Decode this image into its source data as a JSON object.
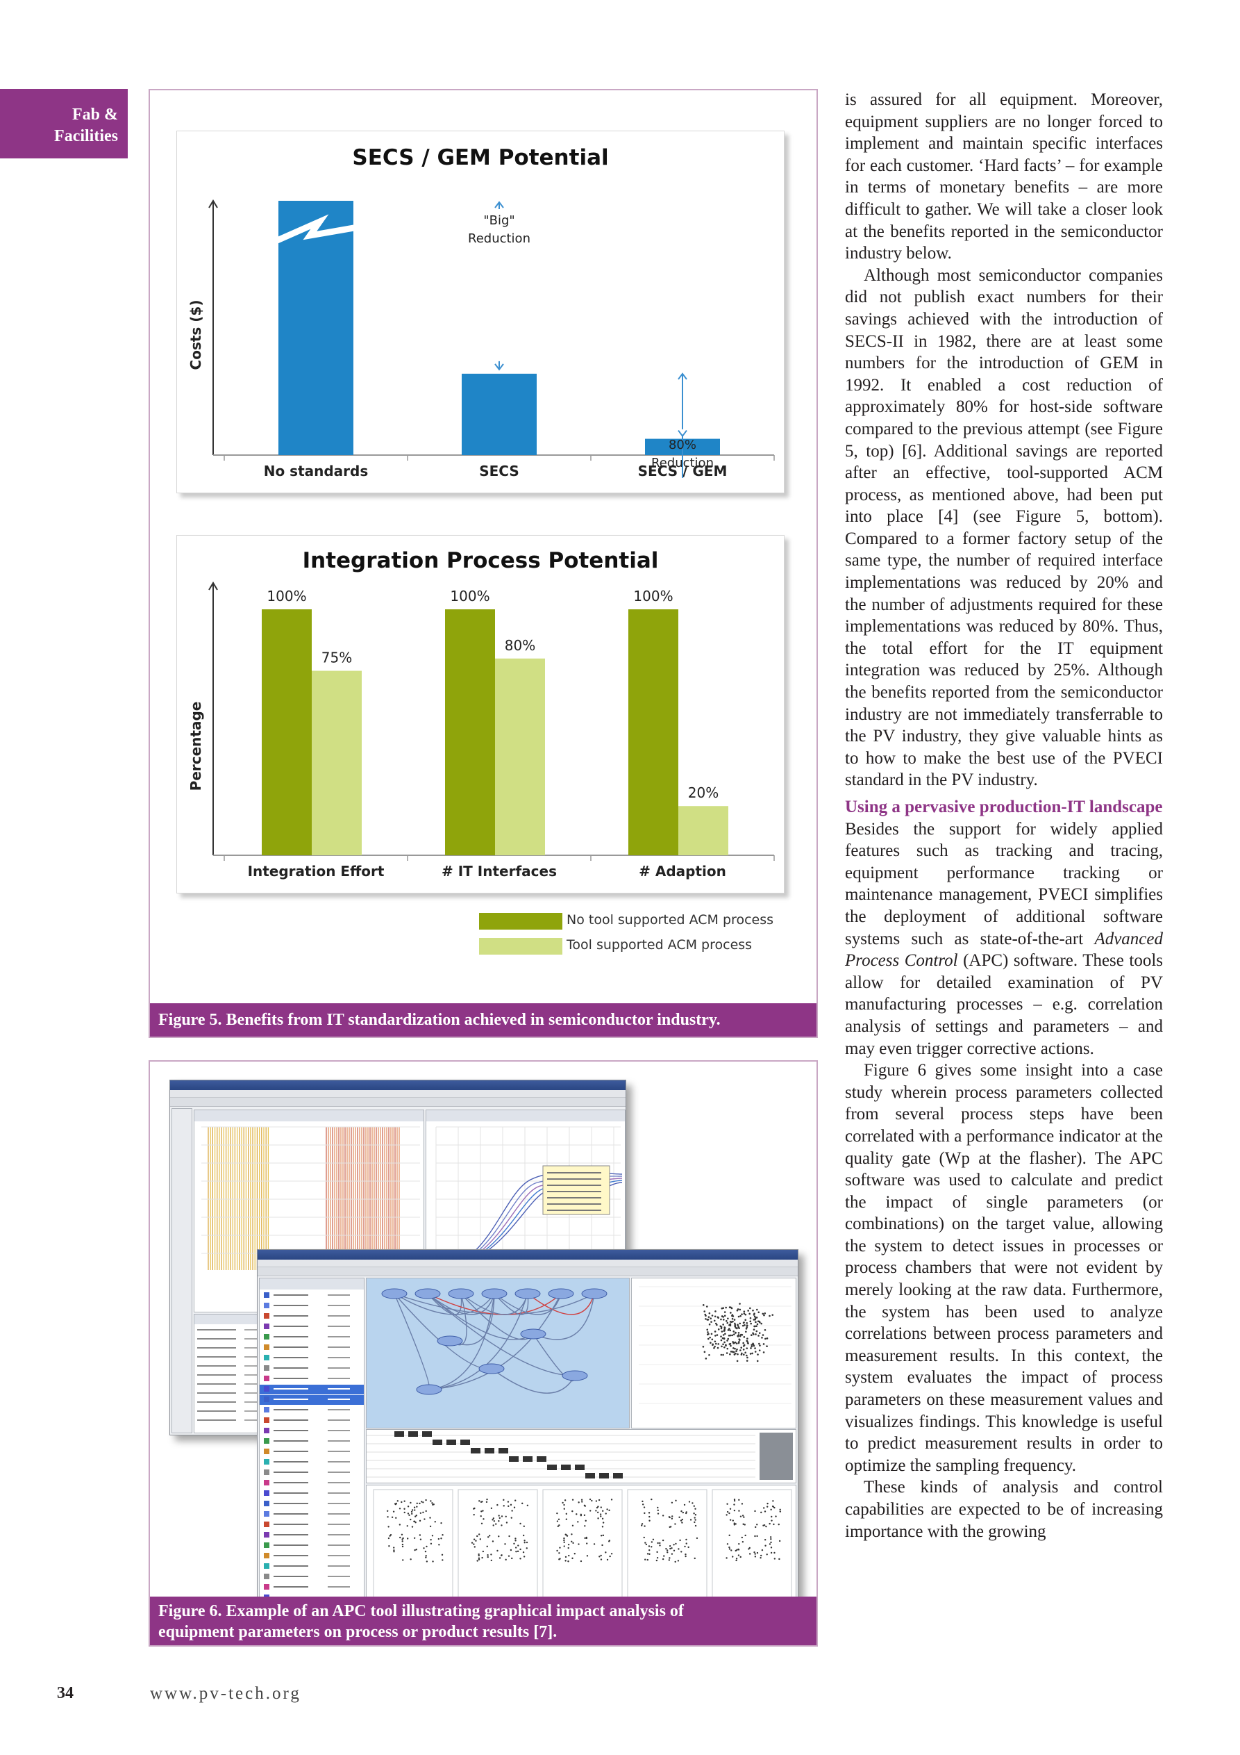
{
  "section_tab": {
    "line1": "Fab &",
    "line2": "Facilities"
  },
  "chart_data": [
    {
      "type": "bar",
      "title": "SECS / GEM Potential",
      "ylabel": "Costs ($)",
      "categories": [
        "No standards",
        "SECS",
        "SECS / GEM"
      ],
      "values_relative": [
        1.0,
        0.32,
        0.064
      ],
      "broken_axis_bar": "No standards",
      "bar_color": "#1f85c7",
      "annotations": [
        {
          "text": "\"Big\"",
          "text2": "Reduction",
          "between": [
            "No standards",
            "SECS"
          ]
        },
        {
          "text": "80%",
          "text2": "Reduction",
          "between": [
            "SECS",
            "SECS / GEM"
          ]
        }
      ]
    },
    {
      "type": "bar",
      "title": "Integration Process Potential",
      "ylabel": "Percentage",
      "categories": [
        "Integration Effort",
        "# IT Interfaces",
        "# Adaption"
      ],
      "series": [
        {
          "name": "No tool supported ACM process",
          "values": [
            100,
            100,
            100
          ],
          "color": "#8fa40b"
        },
        {
          "name": "Tool supported ACM process",
          "values": [
            75,
            80,
            20
          ],
          "color": "#d0df84"
        }
      ],
      "ylim": [
        0,
        100
      ],
      "value_labels": [
        "100%",
        "100%",
        "100%",
        "75%",
        "80%",
        "20%"
      ]
    }
  ],
  "figure5_caption": "Figure 5. Benefits from IT standardization achieved in semiconductor industry.",
  "figure6_caption_line1": "Figure 6. Example of an APC tool illustrating graphical impact analysis of",
  "figure6_caption_line2": "equipment parameters on process or product results [7].",
  "body": {
    "p1": "is assured for all equipment. Moreover, equipment suppliers are no longer forced to implement and maintain specific interfaces for each customer. ‘Hard facts’ – for example in terms of monetary benefits – are more difficult to gather. We will take a closer look at the benefits reported in the semiconductor industry below.",
    "p2": "Although most semiconductor companies did not publish exact numbers for their savings achieved with the introduction of SECS-II in 1982, there are at least some numbers for the introduction of GEM in 1992. It enabled a cost reduction of approximately 80% for host-side software compared to the previous attempt (see Figure 5, top) [6]. Additional savings are reported after an effective, tool-supported ACM process, as mentioned above, had been put into place [4] (see Figure 5, bottom). Compared to a former factory setup of the same type, the number of required interface implementations was reduced by 20% and the number of adjustments required for these implementations was reduced by 80%. Thus, the total effort for the IT equipment integration was reduced by 25%. Although the benefits reported from the semiconductor industry are not immediately transferrable to the PV industry, they give valuable hints as to how to make the best use of the PVECI standard in the PV industry.",
    "subhead": "Using a pervasive production-IT landscape",
    "p3_a": "Besides the support for widely applied features such as tracking and tracing, equipment performance tracking or maintenance management, PVECI simplifies the deployment of additional software systems such as state-of-the-art ",
    "p3_italic": "Advanced Process Control",
    "p3_b": " (APC) software. These tools allow for detailed examination of PV manufacturing processes – e.g. correlation analysis of settings and parameters – and may even trigger corrective actions.",
    "p4": "Figure 6 gives some insight into a case study wherein process parameters collected from several process steps have been correlated with a performance indicator at the quality gate (Wp at the flasher). The APC software was used to calculate and predict the impact of single parameters (or combinations) on the target value, allowing the system to detect issues in processes or process chambers that were not evident by merely looking at the raw data. Furthermore, the system has been used to analyze correlations between process parameters and measurement results. In this context, the system evaluates the impact of process parameters on these measurement values and visualizes findings. This knowledge is useful to predict measurement results in order to optimize the sampling frequency.",
    "p5": "These kinds of analysis and control capabilities are expected to be of increasing importance with the growing"
  },
  "footer": {
    "page_number": "34",
    "url": "www.pv-tech.org"
  }
}
